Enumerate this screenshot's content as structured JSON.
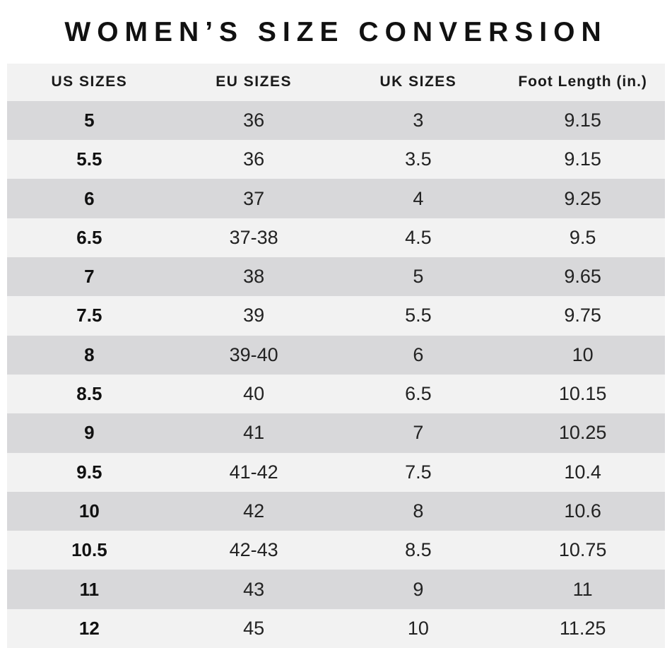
{
  "title": "WOMEN’S SIZE CONVERSION",
  "chart_data": {
    "type": "table",
    "title": "WOMEN’S SIZE CONVERSION",
    "columns": [
      "US SIZES",
      "EU SIZES",
      "UK SIZES",
      "Foot Length (in.)"
    ],
    "rows": [
      [
        "5",
        "36",
        "3",
        "9.15"
      ],
      [
        "5.5",
        "36",
        "3.5",
        "9.15"
      ],
      [
        "6",
        "37",
        "4",
        "9.25"
      ],
      [
        "6.5",
        "37-38",
        "4.5",
        "9.5"
      ],
      [
        "7",
        "38",
        "5",
        "9.65"
      ],
      [
        "7.5",
        "39",
        "5.5",
        "9.75"
      ],
      [
        "8",
        "39-40",
        "6",
        "10"
      ],
      [
        "8.5",
        "40",
        "6.5",
        "10.15"
      ],
      [
        "9",
        "41",
        "7",
        "10.25"
      ],
      [
        "9.5",
        "41-42",
        "7.5",
        "10.4"
      ],
      [
        "10",
        "42",
        "8",
        "10.6"
      ],
      [
        "10.5",
        "42-43",
        "8.5",
        "10.75"
      ],
      [
        "11",
        "43",
        "9",
        "11"
      ],
      [
        "12",
        "45",
        "10",
        "11.25"
      ]
    ],
    "layout": {
      "row_striping": "alternating, first data row dark",
      "alignment": "center"
    }
  },
  "colors": {
    "background": "#ffffff",
    "header_bg": "#f2f2f2",
    "row_dark": "#d8d8da",
    "row_light": "#f2f2f2",
    "text": "#222222",
    "title_text": "#111111"
  }
}
